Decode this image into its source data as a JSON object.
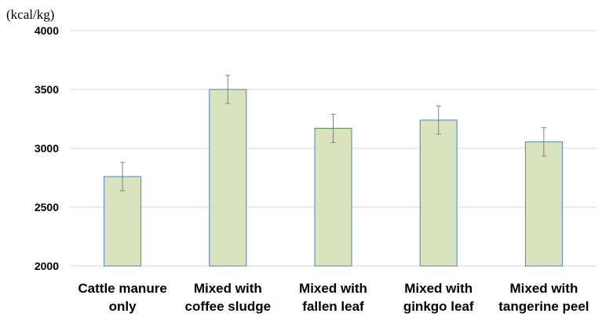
{
  "chart_data": {
    "type": "bar",
    "title": "",
    "xlabel": "",
    "ylabel": "(kcal/kg)",
    "ylim": [
      2000,
      4000
    ],
    "yticks": [
      2000,
      2500,
      3000,
      3500,
      4000
    ],
    "grid": true,
    "categories": [
      [
        "Cattle manure",
        "only"
      ],
      [
        "Mixed with",
        "coffee sludge"
      ],
      [
        "Mixed with",
        "fallen leaf"
      ],
      [
        "Mixed with",
        "ginkgo leaf"
      ],
      [
        "Mixed with",
        "tangerine peel"
      ]
    ],
    "values": [
      2760,
      3500,
      3170,
      3240,
      3055
    ],
    "errors": [
      120,
      120,
      120,
      120,
      120
    ],
    "colors": {
      "bar_fill": "#d7e4bd",
      "bar_stroke": "#4f81bd",
      "grid": "#d9d9d9",
      "error_bar": "#7f7f7f"
    }
  }
}
